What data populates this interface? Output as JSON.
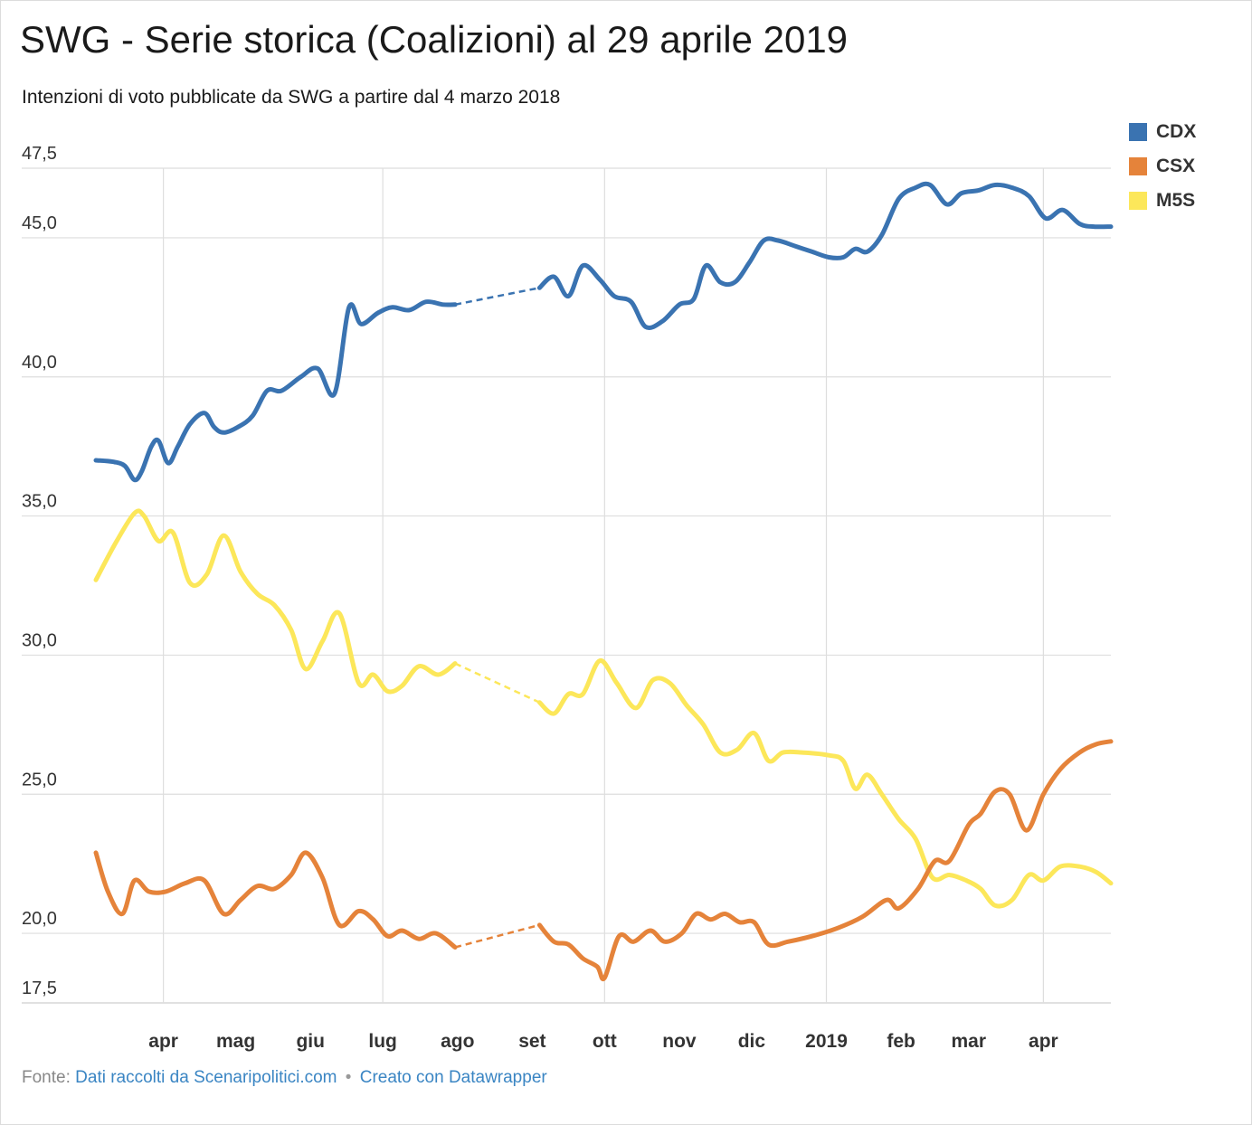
{
  "title": "SWG - Serie storica (Coalizioni) al 29 aprile 2019",
  "subtitle": "Intenzioni di voto pubblicate da SWG a partire dal 4 marzo 2018",
  "footer": {
    "prefix": "Fonte:",
    "source_link": "Dati raccolti da Scenaripolitici.com",
    "separator": "•",
    "credit_link": "Creato con Datawrapper"
  },
  "chart_data": {
    "type": "line",
    "ylim": [
      17.5,
      47.5
    ],
    "y_ticks": [
      {
        "value": 47.5,
        "label": "47,5"
      },
      {
        "value": 45.0,
        "label": "45,0"
      },
      {
        "value": 40.0,
        "label": "40,0"
      },
      {
        "value": 35.0,
        "label": "35,0"
      },
      {
        "value": 30.0,
        "label": "30,0"
      },
      {
        "value": 25.0,
        "label": "25,0"
      },
      {
        "value": 20.0,
        "label": "20,0"
      },
      {
        "value": 17.5,
        "label": "17,5"
      }
    ],
    "xlim": [
      "2018-03-04",
      "2019-04-29"
    ],
    "x_ticks": [
      {
        "date": "2018-04-01",
        "label": "apr",
        "grid": true
      },
      {
        "date": "2018-05-01",
        "label": "mag",
        "grid": false
      },
      {
        "date": "2018-06-01",
        "label": "giu",
        "grid": false
      },
      {
        "date": "2018-07-01",
        "label": "lug",
        "grid": true
      },
      {
        "date": "2018-08-01",
        "label": "ago",
        "grid": false
      },
      {
        "date": "2018-09-01",
        "label": "set",
        "grid": false
      },
      {
        "date": "2018-10-01",
        "label": "ott",
        "grid": true
      },
      {
        "date": "2018-11-01",
        "label": "nov",
        "grid": false
      },
      {
        "date": "2018-12-01",
        "label": "dic",
        "grid": false
      },
      {
        "date": "2019-01-01",
        "label": "2019",
        "grid": true
      },
      {
        "date": "2019-02-01",
        "label": "feb",
        "grid": false
      },
      {
        "date": "2019-03-01",
        "label": "mar",
        "grid": false
      },
      {
        "date": "2019-04-01",
        "label": "apr",
        "grid": true
      }
    ],
    "gap": [
      "2018-07-31",
      "2018-09-04"
    ],
    "legend_position": "top-right",
    "series": [
      {
        "name": "CDX",
        "color": "#3a73b1",
        "points": [
          [
            "2018-03-04",
            37.0
          ],
          [
            "2018-03-11",
            36.95
          ],
          [
            "2018-03-16",
            36.8
          ],
          [
            "2018-03-20",
            36.3
          ],
          [
            "2018-03-23",
            36.6
          ],
          [
            "2018-03-27",
            37.5
          ],
          [
            "2018-03-30",
            37.7
          ],
          [
            "2018-04-03",
            36.9
          ],
          [
            "2018-04-07",
            37.5
          ],
          [
            "2018-04-12",
            38.3
          ],
          [
            "2018-04-18",
            38.7
          ],
          [
            "2018-04-22",
            38.2
          ],
          [
            "2018-04-26",
            38.0
          ],
          [
            "2018-05-02",
            38.2
          ],
          [
            "2018-05-08",
            38.6
          ],
          [
            "2018-05-14",
            39.5
          ],
          [
            "2018-05-20",
            39.5
          ],
          [
            "2018-05-28",
            40.0
          ],
          [
            "2018-06-04",
            40.3
          ],
          [
            "2018-06-11",
            39.4
          ],
          [
            "2018-06-17",
            42.5
          ],
          [
            "2018-06-22",
            41.9
          ],
          [
            "2018-06-29",
            42.3
          ],
          [
            "2018-07-05",
            42.5
          ],
          [
            "2018-07-12",
            42.4
          ],
          [
            "2018-07-19",
            42.7
          ],
          [
            "2018-07-26",
            42.6
          ],
          [
            "2018-07-31",
            42.6
          ],
          [
            "2018-09-04",
            43.2
          ],
          [
            "2018-09-10",
            43.6
          ],
          [
            "2018-09-16",
            42.9
          ],
          [
            "2018-09-22",
            44.0
          ],
          [
            "2018-09-29",
            43.5
          ],
          [
            "2018-10-05",
            42.9
          ],
          [
            "2018-10-12",
            42.7
          ],
          [
            "2018-10-18",
            41.8
          ],
          [
            "2018-10-25",
            42.0
          ],
          [
            "2018-11-01",
            42.6
          ],
          [
            "2018-11-07",
            42.8
          ],
          [
            "2018-11-12",
            44.0
          ],
          [
            "2018-11-18",
            43.4
          ],
          [
            "2018-11-24",
            43.4
          ],
          [
            "2018-11-30",
            44.1
          ],
          [
            "2018-12-06",
            44.9
          ],
          [
            "2018-12-12",
            44.9
          ],
          [
            "2018-12-19",
            44.7
          ],
          [
            "2018-12-26",
            44.5
          ],
          [
            "2019-01-02",
            44.3
          ],
          [
            "2019-01-08",
            44.3
          ],
          [
            "2019-01-13",
            44.6
          ],
          [
            "2019-01-18",
            44.5
          ],
          [
            "2019-01-24",
            45.1
          ],
          [
            "2019-01-31",
            46.4
          ],
          [
            "2019-02-07",
            46.8
          ],
          [
            "2019-02-13",
            46.9
          ],
          [
            "2019-02-20",
            46.2
          ],
          [
            "2019-02-26",
            46.6
          ],
          [
            "2019-03-05",
            46.7
          ],
          [
            "2019-03-12",
            46.9
          ],
          [
            "2019-03-19",
            46.8
          ],
          [
            "2019-03-26",
            46.5
          ],
          [
            "2019-04-02",
            45.7
          ],
          [
            "2019-04-09",
            46.0
          ],
          [
            "2019-04-16",
            45.5
          ],
          [
            "2019-04-22",
            45.4
          ],
          [
            "2019-04-29",
            45.4
          ]
        ]
      },
      {
        "name": "CSX",
        "color": "#e5833a",
        "points": [
          [
            "2018-03-04",
            22.9
          ],
          [
            "2018-03-09",
            21.5
          ],
          [
            "2018-03-15",
            20.7
          ],
          [
            "2018-03-20",
            21.9
          ],
          [
            "2018-03-26",
            21.5
          ],
          [
            "2018-04-02",
            21.5
          ],
          [
            "2018-04-10",
            21.8
          ],
          [
            "2018-04-18",
            21.9
          ],
          [
            "2018-04-26",
            20.7
          ],
          [
            "2018-05-03",
            21.2
          ],
          [
            "2018-05-10",
            21.7
          ],
          [
            "2018-05-17",
            21.6
          ],
          [
            "2018-05-24",
            22.1
          ],
          [
            "2018-05-30",
            22.9
          ],
          [
            "2018-06-06",
            22.0
          ],
          [
            "2018-06-13",
            20.3
          ],
          [
            "2018-06-21",
            20.8
          ],
          [
            "2018-06-27",
            20.5
          ],
          [
            "2018-07-03",
            19.9
          ],
          [
            "2018-07-09",
            20.1
          ],
          [
            "2018-07-16",
            19.8
          ],
          [
            "2018-07-23",
            20.0
          ],
          [
            "2018-07-31",
            19.5
          ],
          [
            "2018-09-04",
            20.3
          ],
          [
            "2018-09-10",
            19.7
          ],
          [
            "2018-09-16",
            19.6
          ],
          [
            "2018-09-22",
            19.1
          ],
          [
            "2018-09-28",
            18.8
          ],
          [
            "2018-10-01",
            18.4
          ],
          [
            "2018-10-07",
            19.9
          ],
          [
            "2018-10-13",
            19.7
          ],
          [
            "2018-10-20",
            20.1
          ],
          [
            "2018-10-26",
            19.7
          ],
          [
            "2018-11-02",
            20.0
          ],
          [
            "2018-11-08",
            20.7
          ],
          [
            "2018-11-14",
            20.5
          ],
          [
            "2018-11-20",
            20.7
          ],
          [
            "2018-11-26",
            20.4
          ],
          [
            "2018-12-02",
            20.4
          ],
          [
            "2018-12-08",
            19.6
          ],
          [
            "2018-12-16",
            19.7
          ],
          [
            "2018-12-26",
            19.9
          ],
          [
            "2019-01-06",
            20.2
          ],
          [
            "2019-01-16",
            20.6
          ],
          [
            "2019-01-26",
            21.2
          ],
          [
            "2019-01-31",
            20.9
          ],
          [
            "2019-02-08",
            21.6
          ],
          [
            "2019-02-15",
            22.6
          ],
          [
            "2019-02-21",
            22.6
          ],
          [
            "2019-03-01",
            23.9
          ],
          [
            "2019-03-06",
            24.3
          ],
          [
            "2019-03-12",
            25.1
          ],
          [
            "2019-03-18",
            25.0
          ],
          [
            "2019-03-25",
            23.7
          ],
          [
            "2019-04-01",
            25.0
          ],
          [
            "2019-04-08",
            25.9
          ],
          [
            "2019-04-16",
            26.5
          ],
          [
            "2019-04-23",
            26.8
          ],
          [
            "2019-04-29",
            26.9
          ]
        ]
      },
      {
        "name": "M5S",
        "color": "#fce75a",
        "points": [
          [
            "2018-03-04",
            32.7
          ],
          [
            "2018-03-12",
            34.0
          ],
          [
            "2018-03-20",
            35.1
          ],
          [
            "2018-03-24",
            35.0
          ],
          [
            "2018-03-30",
            34.1
          ],
          [
            "2018-04-05",
            34.4
          ],
          [
            "2018-04-12",
            32.6
          ],
          [
            "2018-04-19",
            32.9
          ],
          [
            "2018-04-26",
            34.3
          ],
          [
            "2018-05-03",
            33.0
          ],
          [
            "2018-05-10",
            32.2
          ],
          [
            "2018-05-17",
            31.8
          ],
          [
            "2018-05-24",
            30.9
          ],
          [
            "2018-05-30",
            29.5
          ],
          [
            "2018-06-06",
            30.5
          ],
          [
            "2018-06-13",
            31.5
          ],
          [
            "2018-06-21",
            29.0
          ],
          [
            "2018-06-27",
            29.3
          ],
          [
            "2018-07-03",
            28.7
          ],
          [
            "2018-07-09",
            28.9
          ],
          [
            "2018-07-16",
            29.6
          ],
          [
            "2018-07-24",
            29.3
          ],
          [
            "2018-07-31",
            29.7
          ],
          [
            "2018-09-04",
            28.3
          ],
          [
            "2018-09-10",
            27.9
          ],
          [
            "2018-09-16",
            28.6
          ],
          [
            "2018-09-22",
            28.6
          ],
          [
            "2018-09-29",
            29.8
          ],
          [
            "2018-10-06",
            29.0
          ],
          [
            "2018-10-14",
            28.1
          ],
          [
            "2018-10-21",
            29.1
          ],
          [
            "2018-10-28",
            29.0
          ],
          [
            "2018-11-04",
            28.2
          ],
          [
            "2018-11-11",
            27.5
          ],
          [
            "2018-11-18",
            26.5
          ],
          [
            "2018-11-25",
            26.6
          ],
          [
            "2018-12-02",
            27.2
          ],
          [
            "2018-12-08",
            26.2
          ],
          [
            "2018-12-14",
            26.5
          ],
          [
            "2018-12-22",
            26.5
          ],
          [
            "2019-01-02",
            26.4
          ],
          [
            "2019-01-08",
            26.2
          ],
          [
            "2019-01-13",
            25.2
          ],
          [
            "2019-01-18",
            25.7
          ],
          [
            "2019-01-24",
            25.0
          ],
          [
            "2019-01-31",
            24.1
          ],
          [
            "2019-02-07",
            23.4
          ],
          [
            "2019-02-14",
            22.0
          ],
          [
            "2019-02-21",
            22.1
          ],
          [
            "2019-02-28",
            21.9
          ],
          [
            "2019-03-06",
            21.6
          ],
          [
            "2019-03-12",
            21.0
          ],
          [
            "2019-03-19",
            21.2
          ],
          [
            "2019-03-26",
            22.1
          ],
          [
            "2019-04-01",
            21.9
          ],
          [
            "2019-04-08",
            22.4
          ],
          [
            "2019-04-16",
            22.4
          ],
          [
            "2019-04-23",
            22.2
          ],
          [
            "2019-04-29",
            21.8
          ]
        ]
      }
    ]
  }
}
